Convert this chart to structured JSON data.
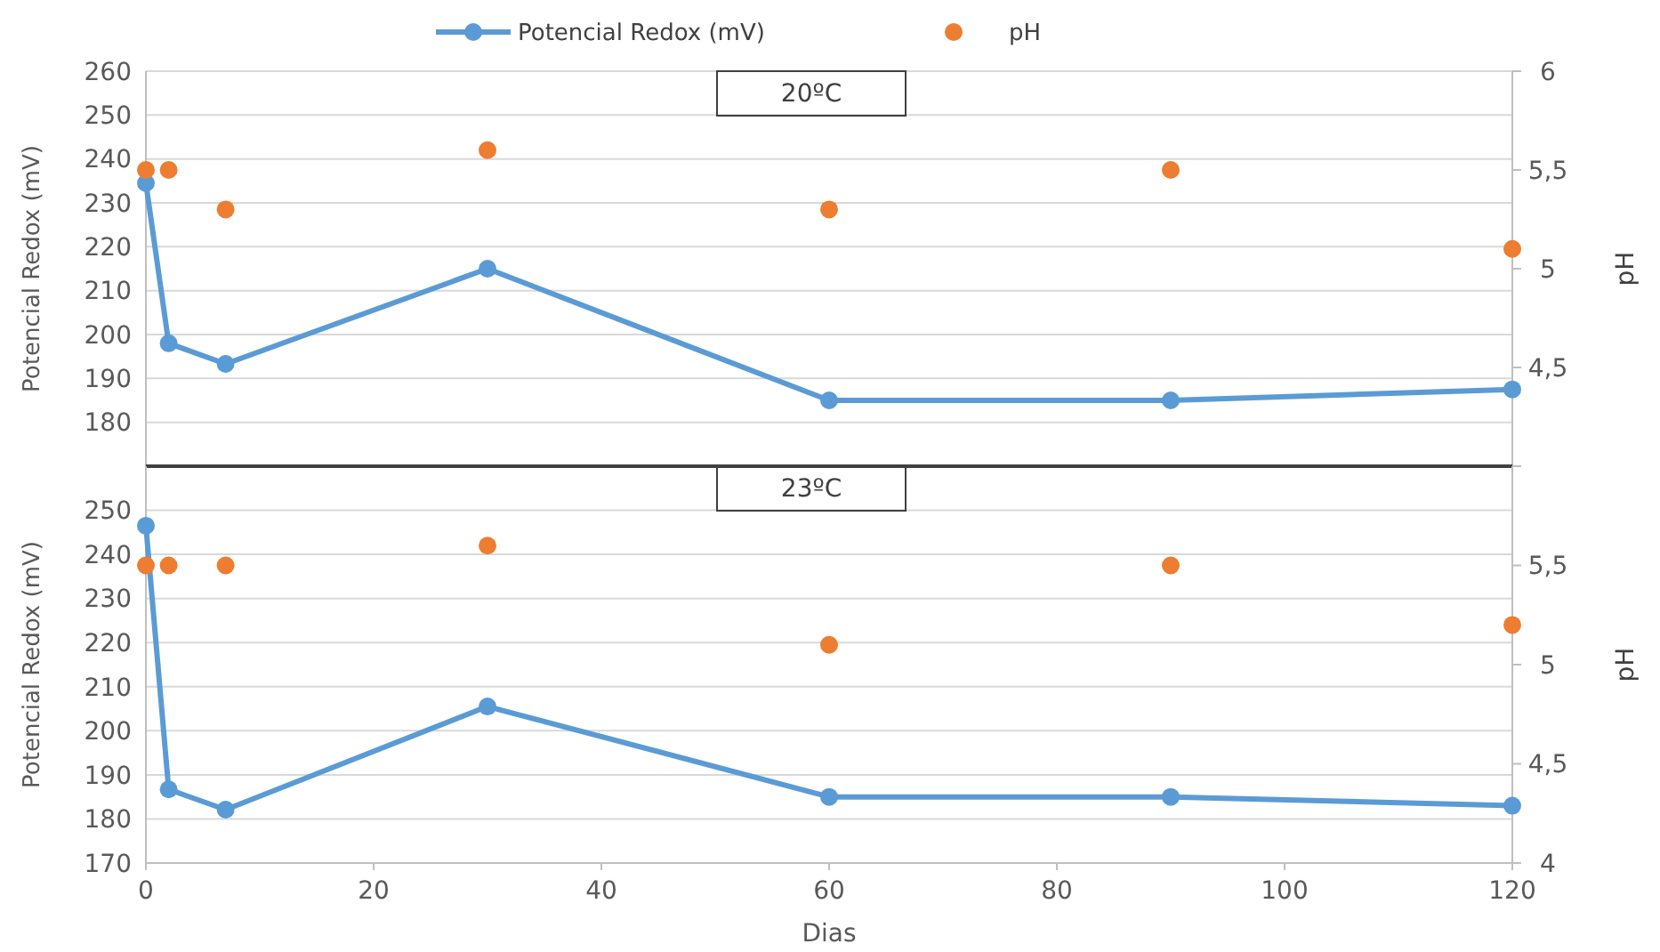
{
  "chart_data": [
    {
      "type": "line",
      "title": "20ºC",
      "ylabel": "Potencial Redox (mV)",
      "y2label": "pH",
      "x": [
        0,
        2,
        7,
        30,
        60,
        90,
        120
      ],
      "xlim": [
        0,
        120
      ],
      "xticks": [
        0,
        20,
        40,
        60,
        80,
        100,
        120
      ],
      "ylim": [
        170,
        260
      ],
      "yticks": [
        {
          "value": 170,
          "label": null
        },
        180,
        190,
        200,
        210,
        220,
        230,
        240,
        250,
        260
      ],
      "y2lim": [
        4,
        6
      ],
      "y2ticks": [
        {
          "value": 4,
          "label": null
        },
        {
          "value": 4.5,
          "label": "4,5"
        },
        5,
        {
          "value": 5.5,
          "label": "5,5"
        },
        6
      ],
      "grid": "y",
      "legend": "top",
      "tick_labels": "y",
      "series": [
        {
          "name": "Potencial Redox (mV)",
          "type": "line",
          "color": "#5b9bd5",
          "marker": "circle",
          "values": [
            234.5,
            198,
            193.3,
            215,
            185,
            185,
            187.5
          ]
        },
        {
          "name": "pH",
          "type": "scatter",
          "axis": "y2",
          "color": "#ed7d31",
          "marker": "circle",
          "values": [
            5.5,
            5.5,
            5.3,
            5.6,
            5.3,
            5.5,
            5.1
          ]
        }
      ]
    },
    {
      "type": "line",
      "title": "23ºC",
      "xlabel": "Dias",
      "ylabel": "Potencial Redox (mV)",
      "y2label": "pH",
      "x": [
        0,
        2,
        7,
        30,
        60,
        90,
        120
      ],
      "xlim": [
        0,
        120
      ],
      "xticks": [
        0,
        20,
        40,
        60,
        80,
        100,
        120
      ],
      "ylim": [
        170,
        260
      ],
      "yticks": [
        170,
        180,
        190,
        200,
        210,
        220,
        230,
        240,
        250
      ],
      "y2lim": [
        4,
        6
      ],
      "y2ticks": [
        4,
        {
          "value": 4.5,
          "label": "4,5"
        },
        5,
        {
          "value": 5.5,
          "label": "5,5"
        }
      ],
      "grid": "y",
      "series": [
        {
          "type": "line",
          "color": "#5b9bd5",
          "marker": "circle",
          "values": [
            246.5,
            186.7,
            182.1,
            205.5,
            185,
            185,
            183
          ]
        },
        {
          "type": "scatter",
          "axis": "y2",
          "color": "#ed7d31",
          "marker": "circle",
          "values": [
            5.5,
            5.5,
            5.5,
            5.6,
            5.1,
            5.5,
            5.2
          ]
        }
      ]
    }
  ]
}
